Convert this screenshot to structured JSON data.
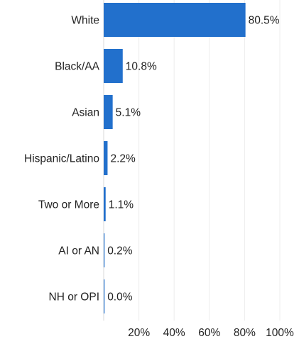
{
  "chart_data": {
    "type": "bar",
    "orientation": "horizontal",
    "categories": [
      "White",
      "Black/AA",
      "Asian",
      "Hispanic/Latino",
      "Two or More",
      "AI or AN",
      "NH or OPI"
    ],
    "values": [
      80.5,
      10.8,
      5.1,
      2.2,
      1.1,
      0.2,
      0.0
    ],
    "value_labels": [
      "80.5%",
      "10.8%",
      "5.1%",
      "2.2%",
      "1.1%",
      "0.2%",
      "0.0%"
    ],
    "x_ticks": [
      "20%",
      "40%",
      "60%",
      "80%",
      "100%"
    ],
    "x_tick_values": [
      20,
      40,
      60,
      80,
      100
    ],
    "xlim": [
      0,
      100
    ],
    "title": "",
    "xlabel": "",
    "ylabel": "",
    "grid": true,
    "legend": "none",
    "bar_color": "#2270cc"
  }
}
